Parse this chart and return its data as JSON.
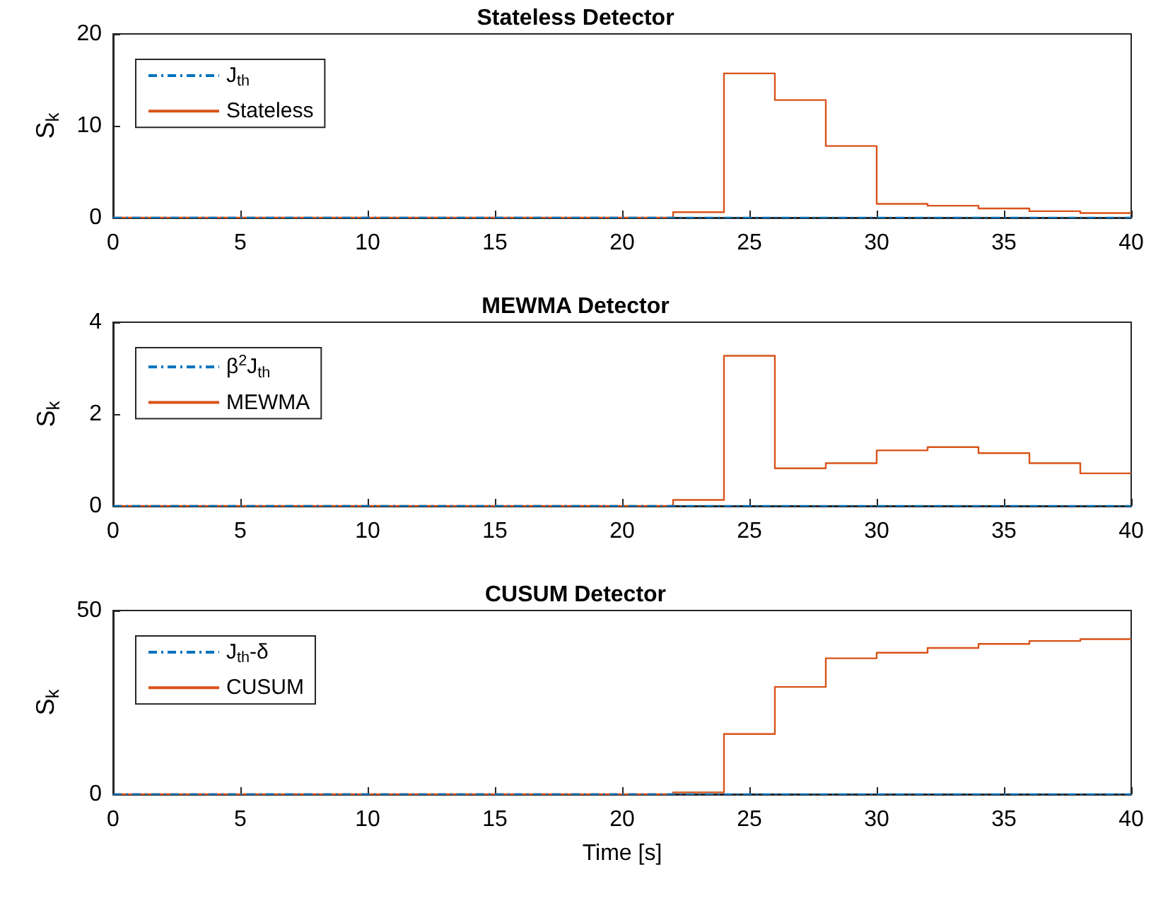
{
  "chart_data": [
    {
      "type": "step",
      "title": "Stateless Detector",
      "ylabel": "S$_{k}$",
      "xlim": [
        0,
        40
      ],
      "xticks": [
        0,
        5,
        10,
        15,
        20,
        25,
        30,
        35,
        40
      ],
      "ylim": [
        0,
        20
      ],
      "yticks": [
        0,
        10,
        20
      ],
      "grid": false,
      "legend": "top left",
      "x": [
        0,
        2,
        4,
        6,
        8,
        10,
        12,
        14,
        16,
        18,
        20,
        22,
        24,
        26,
        28,
        30,
        32,
        34,
        36,
        38,
        40
      ],
      "series": [
        {
          "name": "J$_{th}$",
          "color": "#0072bd",
          "line_style": "dashed",
          "values": [
            0,
            0,
            0,
            0,
            0,
            0,
            0,
            0,
            0,
            0,
            0,
            0,
            0,
            0,
            0,
            0,
            0,
            0,
            0,
            0,
            0
          ]
        },
        {
          "name": "Stateless",
          "color": "#d95319",
          "line_style": "solid",
          "values": [
            0,
            0,
            0,
            0,
            0,
            0,
            0,
            0,
            0,
            0,
            0,
            0.6,
            15.7,
            12.8,
            7.8,
            1.5,
            1.3,
            1.0,
            0.7,
            0.5,
            0.5
          ]
        }
      ]
    },
    {
      "type": "step",
      "title": "MEWMA Detector",
      "ylabel": "S$_{k}$",
      "xlim": [
        0,
        40
      ],
      "xticks": [
        0,
        5,
        10,
        15,
        20,
        25,
        30,
        35,
        40
      ],
      "ylim": [
        0,
        4
      ],
      "yticks": [
        0,
        2,
        4
      ],
      "grid": false,
      "legend": "top left",
      "x": [
        0,
        2,
        4,
        6,
        8,
        10,
        12,
        14,
        16,
        18,
        20,
        22,
        24,
        26,
        28,
        30,
        32,
        34,
        36,
        38,
        40
      ],
      "series": [
        {
          "name": "β$^{2}$J$_{th}$",
          "color": "#0072bd",
          "line_style": "dashed",
          "values": [
            0,
            0,
            0,
            0,
            0,
            0,
            0,
            0,
            0,
            0,
            0,
            0,
            0,
            0,
            0,
            0,
            0,
            0,
            0,
            0,
            0
          ]
        },
        {
          "name": "MEWMA",
          "color": "#d95319",
          "line_style": "solid",
          "values": [
            0,
            0,
            0,
            0,
            0,
            0,
            0,
            0,
            0,
            0,
            0,
            0.13,
            3.27,
            0.82,
            0.93,
            1.21,
            1.28,
            1.15,
            0.93,
            0.71,
            0.71
          ]
        }
      ]
    },
    {
      "type": "step",
      "title": "CUSUM Detector",
      "ylabel": "S$_{k}$",
      "xlabel": "Time [s]",
      "xlim": [
        0,
        40
      ],
      "xticks": [
        0,
        5,
        10,
        15,
        20,
        25,
        30,
        35,
        40
      ],
      "ylim": [
        0,
        50
      ],
      "yticks": [
        0,
        50
      ],
      "grid": false,
      "legend": "top left",
      "x": [
        0,
        2,
        4,
        6,
        8,
        10,
        12,
        14,
        16,
        18,
        20,
        22,
        24,
        26,
        28,
        30,
        32,
        34,
        36,
        38,
        40
      ],
      "series": [
        {
          "name": "J$_{th}$-δ",
          "color": "#0072bd",
          "line_style": "dashed",
          "values": [
            0,
            0,
            0,
            0,
            0,
            0,
            0,
            0,
            0,
            0,
            0,
            0,
            0,
            0,
            0,
            0,
            0,
            0,
            0,
            0,
            0
          ]
        },
        {
          "name": "CUSUM",
          "color": "#d95319",
          "line_style": "solid",
          "values": [
            0,
            0,
            0,
            0,
            0,
            0,
            0,
            0,
            0,
            0,
            0,
            0.5,
            16.4,
            29.2,
            37,
            38.5,
            39.8,
            40.9,
            41.7,
            42.2,
            42.2
          ]
        }
      ]
    }
  ]
}
